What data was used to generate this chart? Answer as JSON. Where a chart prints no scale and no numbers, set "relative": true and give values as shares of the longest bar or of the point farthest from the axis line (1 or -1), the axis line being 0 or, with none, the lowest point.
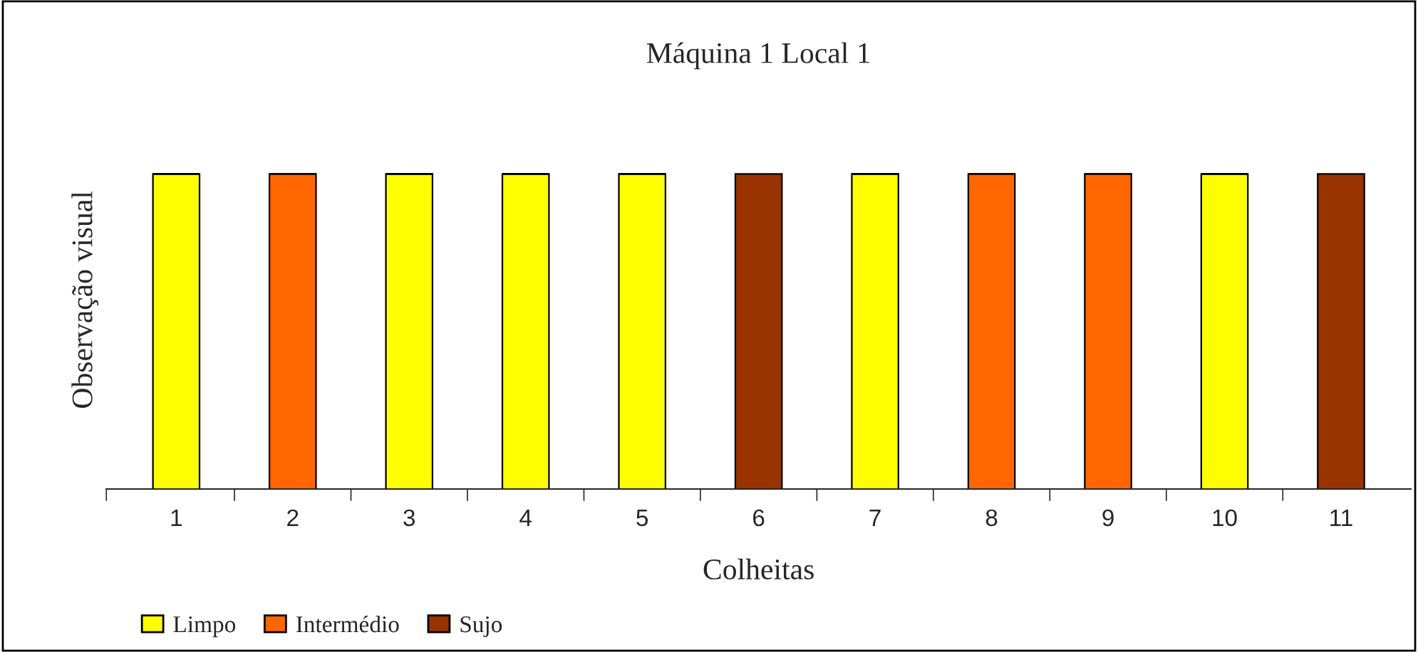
{
  "chart_data": {
    "type": "bar",
    "title": "Máquina 1 Local 1",
    "xlabel": "Colheitas",
    "ylabel": "Observação visual",
    "relative": true,
    "stacked": true,
    "legend": "bottom left",
    "categories": [
      "1",
      "2",
      "3",
      "4",
      "5",
      "6",
      "7",
      "8",
      "9",
      "10",
      "11"
    ],
    "series": [
      {
        "name": "Limpo",
        "color": "#ffff00",
        "values": [
          1,
          null,
          1,
          1,
          1,
          null,
          1,
          null,
          null,
          1,
          null
        ]
      },
      {
        "name": "Intermédio",
        "color": "#ff6600",
        "values": [
          null,
          1,
          null,
          null,
          null,
          null,
          null,
          1,
          1,
          null,
          null
        ]
      },
      {
        "name": "Sujo",
        "color": "#993300",
        "values": [
          null,
          null,
          null,
          null,
          null,
          1,
          null,
          null,
          null,
          null,
          1
        ]
      }
    ]
  }
}
